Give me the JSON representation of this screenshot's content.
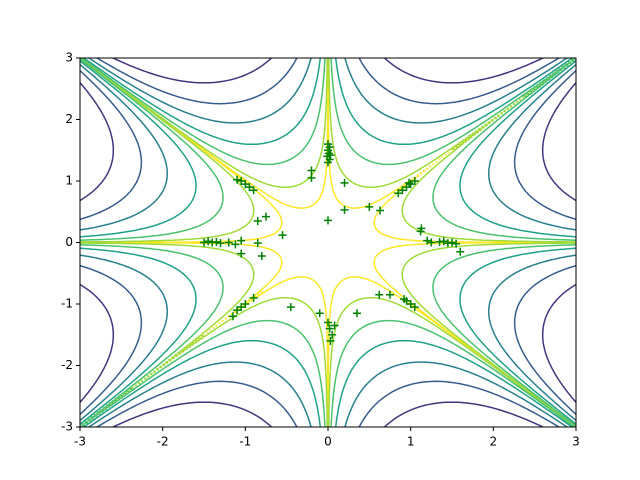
{
  "chart_data": {
    "type": "contour",
    "xlim": [
      -3,
      3
    ],
    "ylim": [
      -3,
      3
    ],
    "xticks": [
      -3,
      -2,
      -1,
      0,
      1,
      2,
      3
    ],
    "yticks": [
      -3,
      -2,
      -1,
      0,
      1,
      2,
      3
    ],
    "levels": [
      0.15,
      1,
      4,
      10,
      22,
      40,
      70
    ],
    "level_colors": [
      "#fde725",
      "#a0da39",
      "#4ac16d",
      "#1fa187",
      "#277f8e",
      "#365c8d",
      "#46327e"
    ],
    "marker_color": "#008000",
    "x": [
      0,
      0.02,
      0,
      0.01,
      -0.01,
      0.02,
      0,
      0.03,
      -0.2,
      -0.2,
      0.2,
      0,
      0.2,
      0.5,
      0.63,
      0.9,
      0.95,
      1.0,
      1.05,
      0.85,
      0.98,
      1.13,
      1.12,
      1.2,
      1.25,
      1.35,
      1.4,
      1.45,
      1.5,
      1.55,
      1.6,
      -1.5,
      -1.45,
      -1.4,
      -1.35,
      -1.3,
      -1.2,
      -1.12,
      -1.05,
      -1.05,
      -0.85,
      -0.8,
      -0.55,
      -0.75,
      -0.85,
      -1.05,
      -1.0,
      -0.95,
      -0.9,
      -1.1,
      -1.15,
      -1.1,
      -1.05,
      -1.0,
      -0.9,
      -0.45,
      -0.1,
      0,
      0.02,
      0.05,
      0.03,
      0.08,
      0.35,
      0.62,
      0.75,
      0.95,
      1.0,
      1.05,
      0.92
    ],
    "y": [
      1.6,
      1.55,
      1.5,
      1.45,
      1.4,
      1.35,
      1.3,
      1.42,
      1.17,
      1.05,
      0.97,
      0.36,
      0.53,
      0.58,
      0.52,
      0.85,
      0.9,
      0.95,
      1.0,
      0.8,
      0.97,
      0.23,
      0.18,
      0.03,
      0,
      0.01,
      0.02,
      -0.01,
      0,
      -0.02,
      -0.15,
      0,
      0.02,
      0,
      0.01,
      -0.01,
      0,
      -0.03,
      0.03,
      -0.18,
      -0.01,
      -0.22,
      0.12,
      0.42,
      0.35,
      1.0,
      0.95,
      0.9,
      0.85,
      1.02,
      -1.2,
      -1.1,
      -1.05,
      -1.0,
      -0.9,
      -1.05,
      -1.15,
      -1.3,
      -1.4,
      -1.5,
      -1.6,
      -1.35,
      -1.15,
      -0.85,
      -0.85,
      -0.95,
      -1.0,
      -1.05,
      -0.92
    ]
  }
}
